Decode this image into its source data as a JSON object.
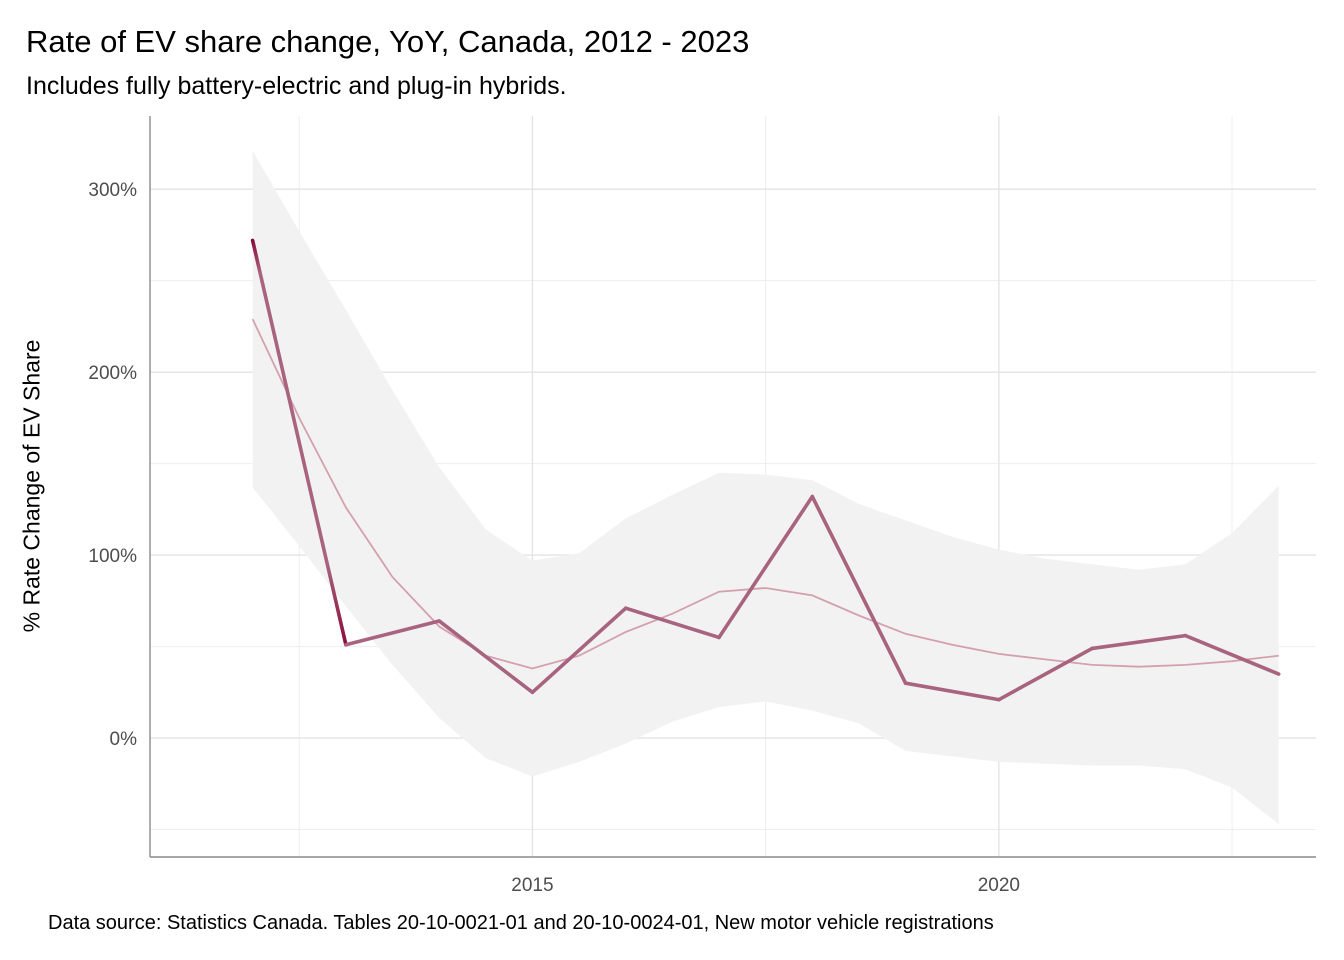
{
  "chart_data": {
    "type": "line",
    "title": "Rate of EV share change, YoY, Canada, 2012 - 2023",
    "subtitle": "Includes fully battery-electric and plug-in hybrids.",
    "caption": "Data source: Statistics Canada. Tables 20-10-0021-01 and 20-10-0024-01, New motor vehicle registrations",
    "xlabel": "",
    "ylabel": "% Rate Change of EV Share",
    "xlim": [
      2010.9,
      2023.4
    ],
    "ylim": [
      -65,
      340
    ],
    "x_ticks": [
      2015,
      2020
    ],
    "x_tick_labels": [
      "2015",
      "2020"
    ],
    "y_ticks": [
      0,
      100,
      200,
      300
    ],
    "y_tick_labels": [
      "0%",
      "100%",
      "200%",
      "300%"
    ],
    "grid": true,
    "colors": {
      "line": "#a8637f",
      "line_start": "#8b0a3c",
      "smooth": "#d4a0ae",
      "ribbon": "#f2f2f2"
    },
    "series": [
      {
        "x": [
          2012,
          2013,
          2014,
          2015,
          2016,
          2017,
          2018,
          2019,
          2020,
          2021,
          2022,
          2023
        ],
        "values": [
          272,
          51,
          64,
          25,
          71,
          55,
          132,
          30,
          21,
          49,
          56,
          35
        ]
      }
    ],
    "smooth": {
      "x": [
        2012,
        2012.5,
        2013,
        2013.5,
        2014,
        2014.5,
        2015,
        2015.5,
        2016,
        2016.5,
        2017,
        2017.5,
        2018,
        2018.5,
        2019,
        2019.5,
        2020,
        2020.5,
        2021,
        2021.5,
        2022,
        2022.5,
        2023
      ],
      "y": [
        229,
        175,
        126,
        88,
        61,
        45,
        38,
        45,
        58,
        68,
        80,
        82,
        78,
        67,
        57,
        51,
        46,
        43,
        40,
        39,
        40,
        42,
        45
      ],
      "lower": [
        137,
        105,
        72,
        40,
        11,
        -11,
        -21,
        -13,
        -3,
        9,
        17,
        20,
        15,
        8,
        -7,
        -10,
        -13,
        -14,
        -15,
        -15,
        -17,
        -27,
        -47
      ],
      "upper": [
        321,
        277,
        234,
        190,
        148,
        114,
        97,
        101,
        120,
        133,
        145,
        144,
        141,
        128,
        119,
        110,
        103,
        98,
        95,
        92,
        95,
        112,
        138
      ]
    }
  }
}
